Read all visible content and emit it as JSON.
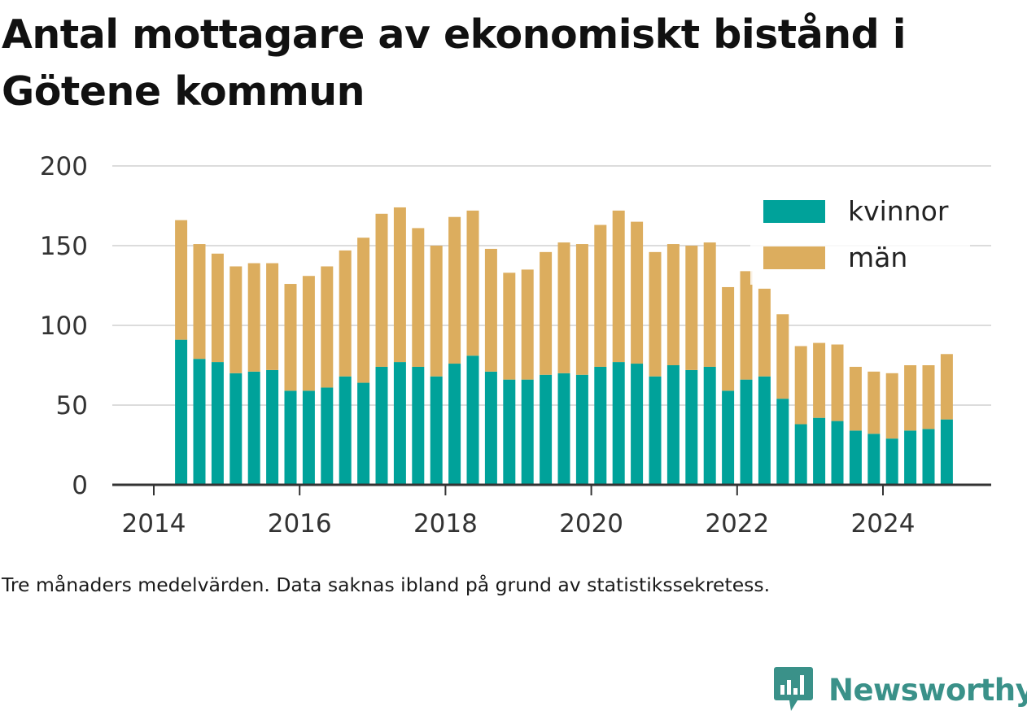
{
  "title": "Antal mottagare av ekonomiskt bistånd i Götene kommun",
  "note": "Tre månaders medelvärden. Data saknas ibland på grund av statistikssekretess.",
  "brand": {
    "name": "Newsworthy"
  },
  "colors": {
    "kvinnor": "#00a29a",
    "man": "#dcad5e",
    "grid": "#dcdcdc",
    "axis": "#333333",
    "brand": "#3a9189"
  },
  "chart_data": {
    "type": "bar",
    "stacked": true,
    "ylim": [
      0,
      200
    ],
    "yticks": [
      0,
      50,
      100,
      150,
      200
    ],
    "xticks": [
      "2014",
      "2016",
      "2018",
      "2020",
      "2022",
      "2024"
    ],
    "legend": {
      "placement": "top-right",
      "entries": [
        "kvinnor",
        "män"
      ]
    },
    "categories": [
      "2014-Q2",
      "2014-Q3",
      "2014-Q4",
      "2015-Q1",
      "2015-Q2",
      "2015-Q3",
      "2015-Q4",
      "2016-Q1",
      "2016-Q2",
      "2016-Q3",
      "2016-Q4",
      "2017-Q1",
      "2017-Q2",
      "2017-Q3",
      "2017-Q4",
      "2018-Q1",
      "2018-Q2",
      "2018-Q3",
      "2018-Q4",
      "2019-Q1",
      "2019-Q2",
      "2019-Q3",
      "2019-Q4",
      "2020-Q1",
      "2020-Q2",
      "2020-Q3",
      "2020-Q4",
      "2021-Q1",
      "2021-Q2",
      "2021-Q3",
      "2021-Q4",
      "2022-Q1",
      "2022-Q2",
      "2022-Q3",
      "2022-Q4",
      "2023-Q1",
      "2023-Q2",
      "2023-Q3",
      "2023-Q4",
      "2024-Q1",
      "2024-Q2",
      "2024-Q3",
      "2024-Q4"
    ],
    "series": [
      {
        "name": "kvinnor",
        "values": [
          91,
          79,
          77,
          70,
          71,
          72,
          59,
          59,
          61,
          68,
          64,
          74,
          77,
          74,
          68,
          76,
          81,
          71,
          66,
          66,
          69,
          70,
          69,
          74,
          77,
          76,
          68,
          75,
          72,
          74,
          59,
          66,
          68,
          54,
          38,
          42,
          40,
          34,
          32,
          29,
          34,
          35,
          41
        ]
      },
      {
        "name": "män",
        "values": [
          75,
          72,
          68,
          67,
          68,
          67,
          67,
          72,
          76,
          79,
          91,
          96,
          97,
          87,
          82,
          92,
          91,
          77,
          67,
          69,
          77,
          82,
          82,
          89,
          95,
          89,
          78,
          76,
          78,
          78,
          65,
          68,
          55,
          53,
          49,
          47,
          48,
          40,
          39,
          41,
          41,
          40,
          41
        ]
      }
    ]
  }
}
